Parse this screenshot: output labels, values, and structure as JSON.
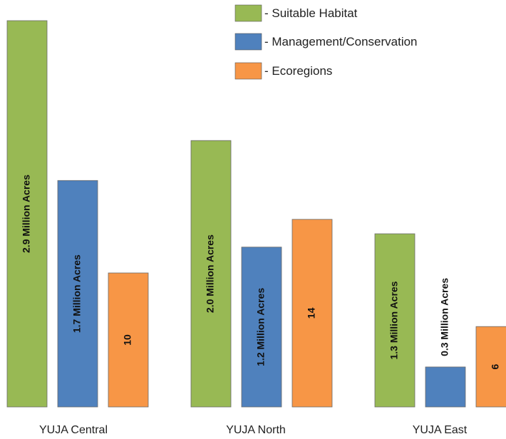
{
  "chart_data": {
    "type": "bar",
    "title": "",
    "xlabel": "",
    "ylabel": "",
    "categories": [
      "YUJA Central",
      "YUJA North",
      "YUJA East"
    ],
    "series": [
      {
        "name": "- Suitable Habitat",
        "color": "#98b954",
        "values": [
          2.9,
          2.0,
          1.3
        ],
        "labels": [
          "2.9 Million Acres",
          "2.0 Million Acres",
          "1.3 Million Acres"
        ]
      },
      {
        "name": "- Management/Conservation",
        "color": "#4f81bd",
        "values": [
          1.7,
          1.2,
          0.3
        ],
        "labels": [
          "1.7 Million Acres",
          "1.2 Million Acres",
          "0.3 Million Acres"
        ]
      },
      {
        "name": "- Ecoregions",
        "color": "#f79646",
        "values": [
          10,
          14,
          6
        ],
        "labels": [
          "10",
          "14",
          "6"
        ]
      }
    ],
    "grid": false,
    "legend_position": "top-right"
  }
}
